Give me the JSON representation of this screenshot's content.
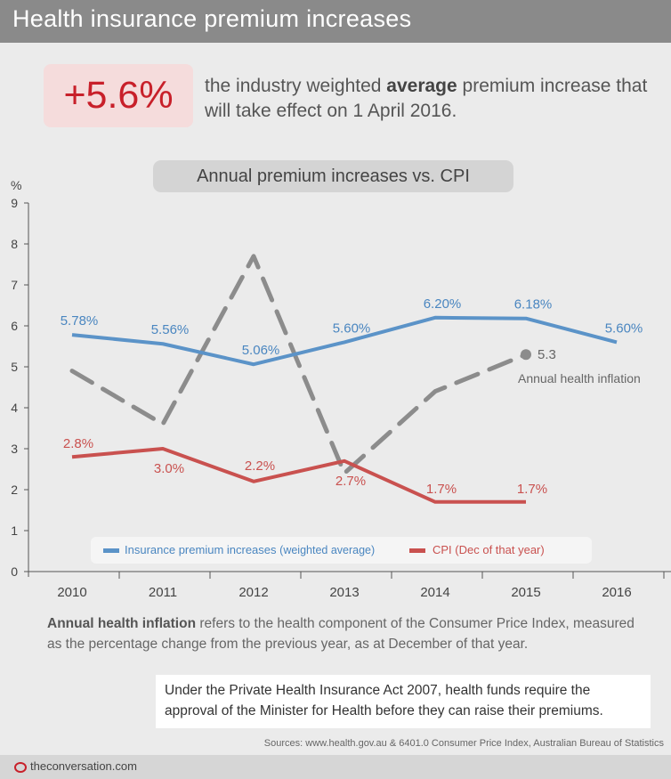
{
  "header": {
    "title": "Health insurance premium increases"
  },
  "kpi": {
    "value": "+5.6%",
    "desc_pre": "the industry weighted ",
    "desc_bold": "average",
    "desc_post": " premium increase that will take effect on 1 April 2016."
  },
  "chart_data": {
    "type": "line",
    "title": "Annual premium increases vs. CPI",
    "ylabel": "%",
    "ylim": [
      0,
      9
    ],
    "yticks": [
      "0",
      "1",
      "2",
      "3",
      "4",
      "5",
      "6",
      "7",
      "8",
      "9"
    ],
    "categories": [
      "2010",
      "2011",
      "2012",
      "2013",
      "2014",
      "2015",
      "2016"
    ],
    "grid": false,
    "legend_position": "bottom",
    "series": [
      {
        "name": "Insurance premium increases",
        "name_suffix": "(weighted average)",
        "color": "#5b93c8",
        "style": "solid",
        "values": [
          5.78,
          5.56,
          5.06,
          5.6,
          6.2,
          6.18,
          5.6
        ],
        "labels": [
          "5.78%",
          "5.56%",
          "5.06%",
          "5.60%",
          "6.20%",
          "6.18%",
          "5.60%"
        ]
      },
      {
        "name": "CPI (Dec of that year)",
        "color": "#c9514f",
        "style": "solid",
        "values": [
          2.8,
          3.0,
          2.2,
          2.7,
          1.7,
          1.7,
          null
        ],
        "labels": [
          "2.8%",
          "3.0%",
          "2.2%",
          "2.7%",
          "1.7%",
          "1.7%",
          ""
        ]
      },
      {
        "name": "Annual health inflation",
        "color": "#8c8c8c",
        "style": "dashed",
        "values": [
          4.9,
          3.6,
          7.7,
          2.4,
          4.4,
          5.3,
          null
        ],
        "end_label": "5.3"
      }
    ]
  },
  "note": {
    "bold": "Annual health inflation",
    "text": " refers to the health component of the Consumer Price Index, measured as the percentage change from the previous year, as at December of that year."
  },
  "act": {
    "text": "Under the Private Health Insurance Act 2007, health funds require the approval of the Minister for Health before they can raise their premiums."
  },
  "sources": "Sources: www.health.gov.au & 6401.0 Consumer Price Index, Australian Bureau of Statistics",
  "footer": {
    "logo_text": "theconversation.com"
  }
}
